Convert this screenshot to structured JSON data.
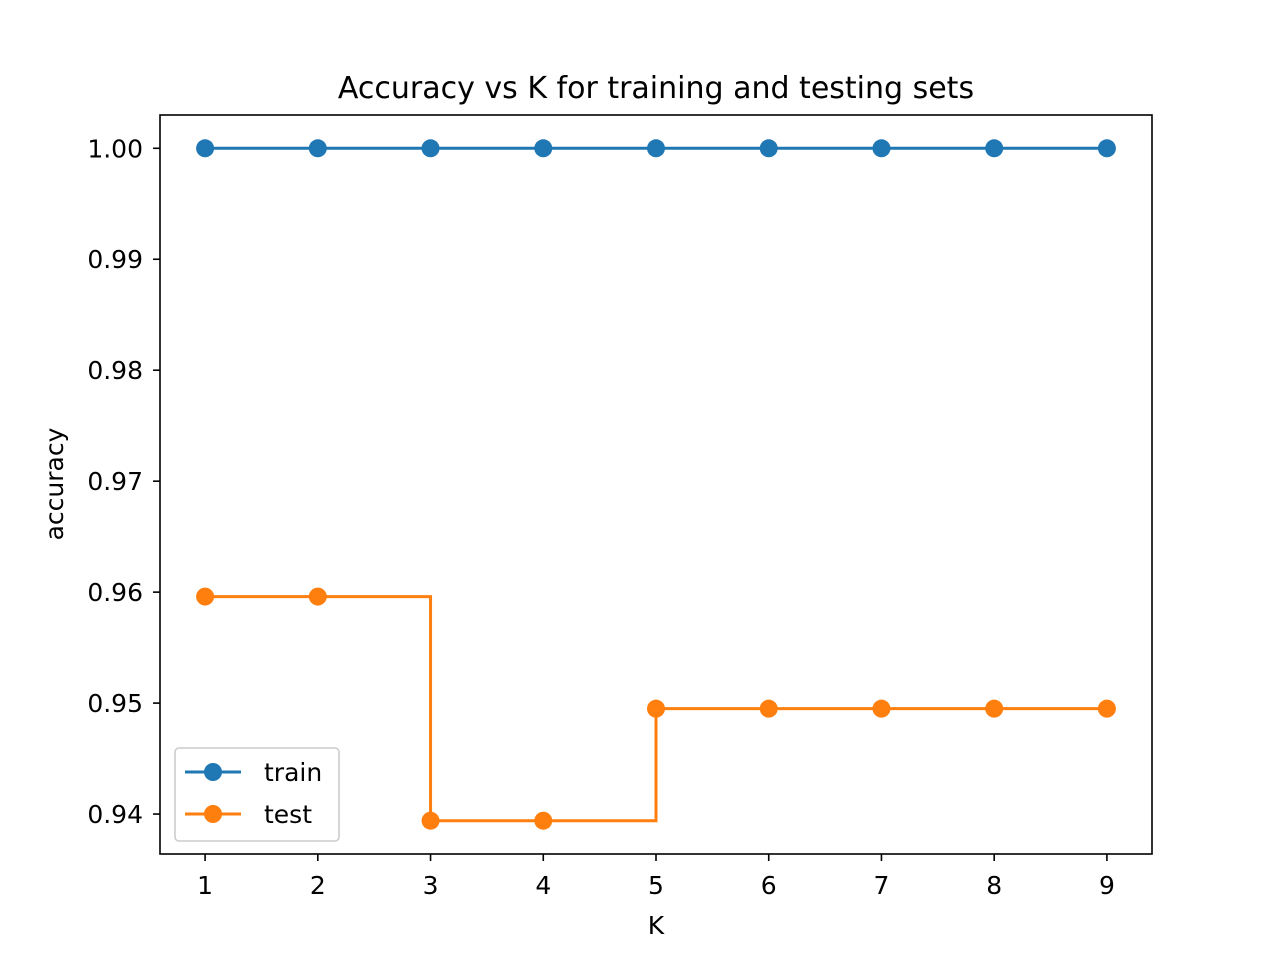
{
  "chart_data": {
    "type": "line",
    "title": "Accuracy vs K for training and testing sets",
    "xlabel": "K",
    "ylabel": "accuracy",
    "x": [
      1,
      2,
      3,
      4,
      5,
      6,
      7,
      8,
      9
    ],
    "xlim": [
      0.6,
      9.4
    ],
    "ylim": [
      0.9364,
      1.003
    ],
    "xticks": [
      "1",
      "2",
      "3",
      "4",
      "5",
      "6",
      "7",
      "8",
      "9"
    ],
    "yticks": [
      "0.94",
      "0.95",
      "0.96",
      "0.97",
      "0.98",
      "0.99",
      "1.00"
    ],
    "grid": false,
    "legend_position": "lower-left",
    "series": [
      {
        "name": "train",
        "color": "#1f77b4",
        "drawstyle": "steps",
        "marker": "circle",
        "values": [
          1.0,
          1.0,
          1.0,
          1.0,
          1.0,
          1.0,
          1.0,
          1.0,
          1.0
        ]
      },
      {
        "name": "test",
        "color": "#ff7f0e",
        "drawstyle": "steps",
        "marker": "circle",
        "values": [
          0.9596,
          0.9596,
          0.9394,
          0.9394,
          0.9495,
          0.9495,
          0.9495,
          0.9495,
          0.9495
        ]
      }
    ]
  }
}
